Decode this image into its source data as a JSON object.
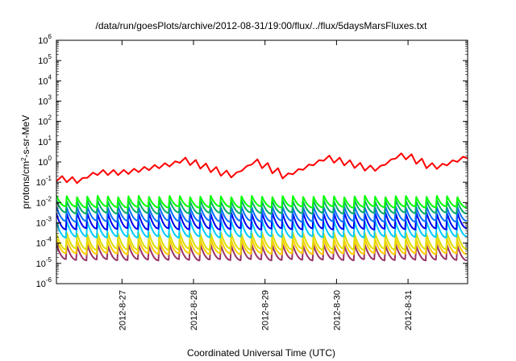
{
  "chart_data": {
    "type": "line",
    "title": "/data/run/goesPlots/archive/2012-08-31/19:00/flux/../flux/5daysMarsFluxes.txt",
    "xlabel": "Coordinated Universal Time (UTC)",
    "ylabel": {
      "prefix": "protons/cm",
      "superscript": "2",
      "suffix": "-s-sr-MeV"
    },
    "yscale": "log",
    "ylim": [
      1e-06,
      1000000.0
    ],
    "y_ticks": [
      {
        "value": 1e-06,
        "base": "10",
        "exp": "-6"
      },
      {
        "value": 1e-05,
        "base": "10",
        "exp": "-5"
      },
      {
        "value": 0.0001,
        "base": "10",
        "exp": "-4"
      },
      {
        "value": 0.001,
        "base": "10",
        "exp": "-3"
      },
      {
        "value": 0.01,
        "base": "10",
        "exp": "-2"
      },
      {
        "value": 0.1,
        "base": "10",
        "exp": "-1"
      },
      {
        "value": 1,
        "base": "10",
        "exp": "0"
      },
      {
        "value": 10,
        "base": "10",
        "exp": "1"
      },
      {
        "value": 100,
        "base": "10",
        "exp": "2"
      },
      {
        "value": 1000,
        "base": "10",
        "exp": "3"
      },
      {
        "value": 10000,
        "base": "10",
        "exp": "4"
      },
      {
        "value": 100000,
        "base": "10",
        "exp": "5"
      },
      {
        "value": 1000000,
        "base": "10",
        "exp": "6"
      }
    ],
    "xlim": [
      "2012-08-26T02:00",
      "2012-08-31T20:00"
    ],
    "x_ticks": [
      {
        "value": "2012-08-27T00:00",
        "label": "2012-8-27"
      },
      {
        "value": "2012-08-28T00:00",
        "label": "2012-8-28"
      },
      {
        "value": "2012-08-29T00:00",
        "label": "2012-8-29"
      },
      {
        "value": "2012-08-30T00:00",
        "label": "2012-8-30"
      },
      {
        "value": "2012-08-31T00:00",
        "label": "2012-8-31"
      }
    ],
    "grid": false,
    "legend": "none",
    "sawtooth_cycles": 40,
    "series": [
      {
        "color": "#ff0000",
        "peak": 0.25,
        "trough": 0.12,
        "base_envelope": [
          {
            "x": "2012-08-26T02:00",
            "y": 0.15
          },
          {
            "x": "2012-08-26T09:00",
            "y": 0.12
          },
          {
            "x": "2012-08-26T14:00",
            "y": 0.3
          },
          {
            "x": "2012-08-27T00:00",
            "y": 0.3
          },
          {
            "x": "2012-08-27T16:00",
            "y": 0.8
          },
          {
            "x": "2012-08-27T20:00",
            "y": 1.3
          },
          {
            "x": "2012-08-28T12:00",
            "y": 0.2
          },
          {
            "x": "2012-08-28T20:00",
            "y": 1.1
          },
          {
            "x": "2012-08-29T06:00",
            "y": 0.2
          },
          {
            "x": "2012-08-29T20:00",
            "y": 1.6
          },
          {
            "x": "2012-08-30T12:00",
            "y": 0.4
          },
          {
            "x": "2012-08-30T21:00",
            "y": 2.5
          },
          {
            "x": "2012-08-31T08:00",
            "y": 0.5
          },
          {
            "x": "2012-08-31T20:00",
            "y": 2.0
          }
        ]
      },
      {
        "color": "#00ff00",
        "peak": 0.02,
        "trough": 0.006
      },
      {
        "color": "#00aa66",
        "peak": 0.012,
        "trough": 0.003
      },
      {
        "color": "#0070ff",
        "peak": 0.006,
        "trough": 0.0012
      },
      {
        "color": "#0000ee",
        "peak": 0.003,
        "trough": 0.0005
      },
      {
        "color": "#00ccff",
        "peak": 0.0012,
        "trough": 0.0002
      },
      {
        "color": "#dddd00",
        "peak": 0.0003,
        "trough": 5e-05
      },
      {
        "color": "#ffcc00",
        "peak": 0.00015,
        "trough": 3e-05
      },
      {
        "color": "#993366",
        "peak": 8e-05,
        "trough": 1.5e-05
      }
    ]
  }
}
